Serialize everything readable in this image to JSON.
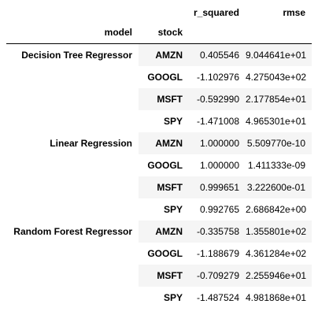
{
  "columns": {
    "index_names": [
      "model",
      "stock"
    ],
    "headers": [
      "r_squared",
      "rmse"
    ]
  },
  "groups": [
    {
      "model": "Decision Tree Regressor",
      "rows": [
        {
          "stock": "AMZN",
          "r_squared": "0.405546",
          "rmse": "9.044641e+01"
        },
        {
          "stock": "GOOGL",
          "r_squared": "-1.102976",
          "rmse": "4.275043e+02"
        },
        {
          "stock": "MSFT",
          "r_squared": "-0.592990",
          "rmse": "2.177854e+01"
        },
        {
          "stock": "SPY",
          "r_squared": "-1.471008",
          "rmse": "4.965301e+01"
        }
      ]
    },
    {
      "model": "Linear Regression",
      "rows": [
        {
          "stock": "AMZN",
          "r_squared": "1.000000",
          "rmse": "5.509770e-10"
        },
        {
          "stock": "GOOGL",
          "r_squared": "1.000000",
          "rmse": "1.411333e-09"
        },
        {
          "stock": "MSFT",
          "r_squared": "0.999651",
          "rmse": "3.222600e-01"
        },
        {
          "stock": "SPY",
          "r_squared": "0.992765",
          "rmse": "2.686842e+00"
        }
      ]
    },
    {
      "model": "Random Forest Regressor",
      "rows": [
        {
          "stock": "AMZN",
          "r_squared": "-0.335758",
          "rmse": "1.355801e+02"
        },
        {
          "stock": "GOOGL",
          "r_squared": "-1.188679",
          "rmse": "4.361284e+02"
        },
        {
          "stock": "MSFT",
          "r_squared": "-0.709279",
          "rmse": "2.255946e+01"
        },
        {
          "stock": "SPY",
          "r_squared": "-1.487524",
          "rmse": "4.981868e+01"
        }
      ]
    }
  ],
  "colors": {
    "stripe": "#f5f5f5",
    "background": "#ffffff",
    "text": "#000000",
    "header_rule": "#000000"
  }
}
